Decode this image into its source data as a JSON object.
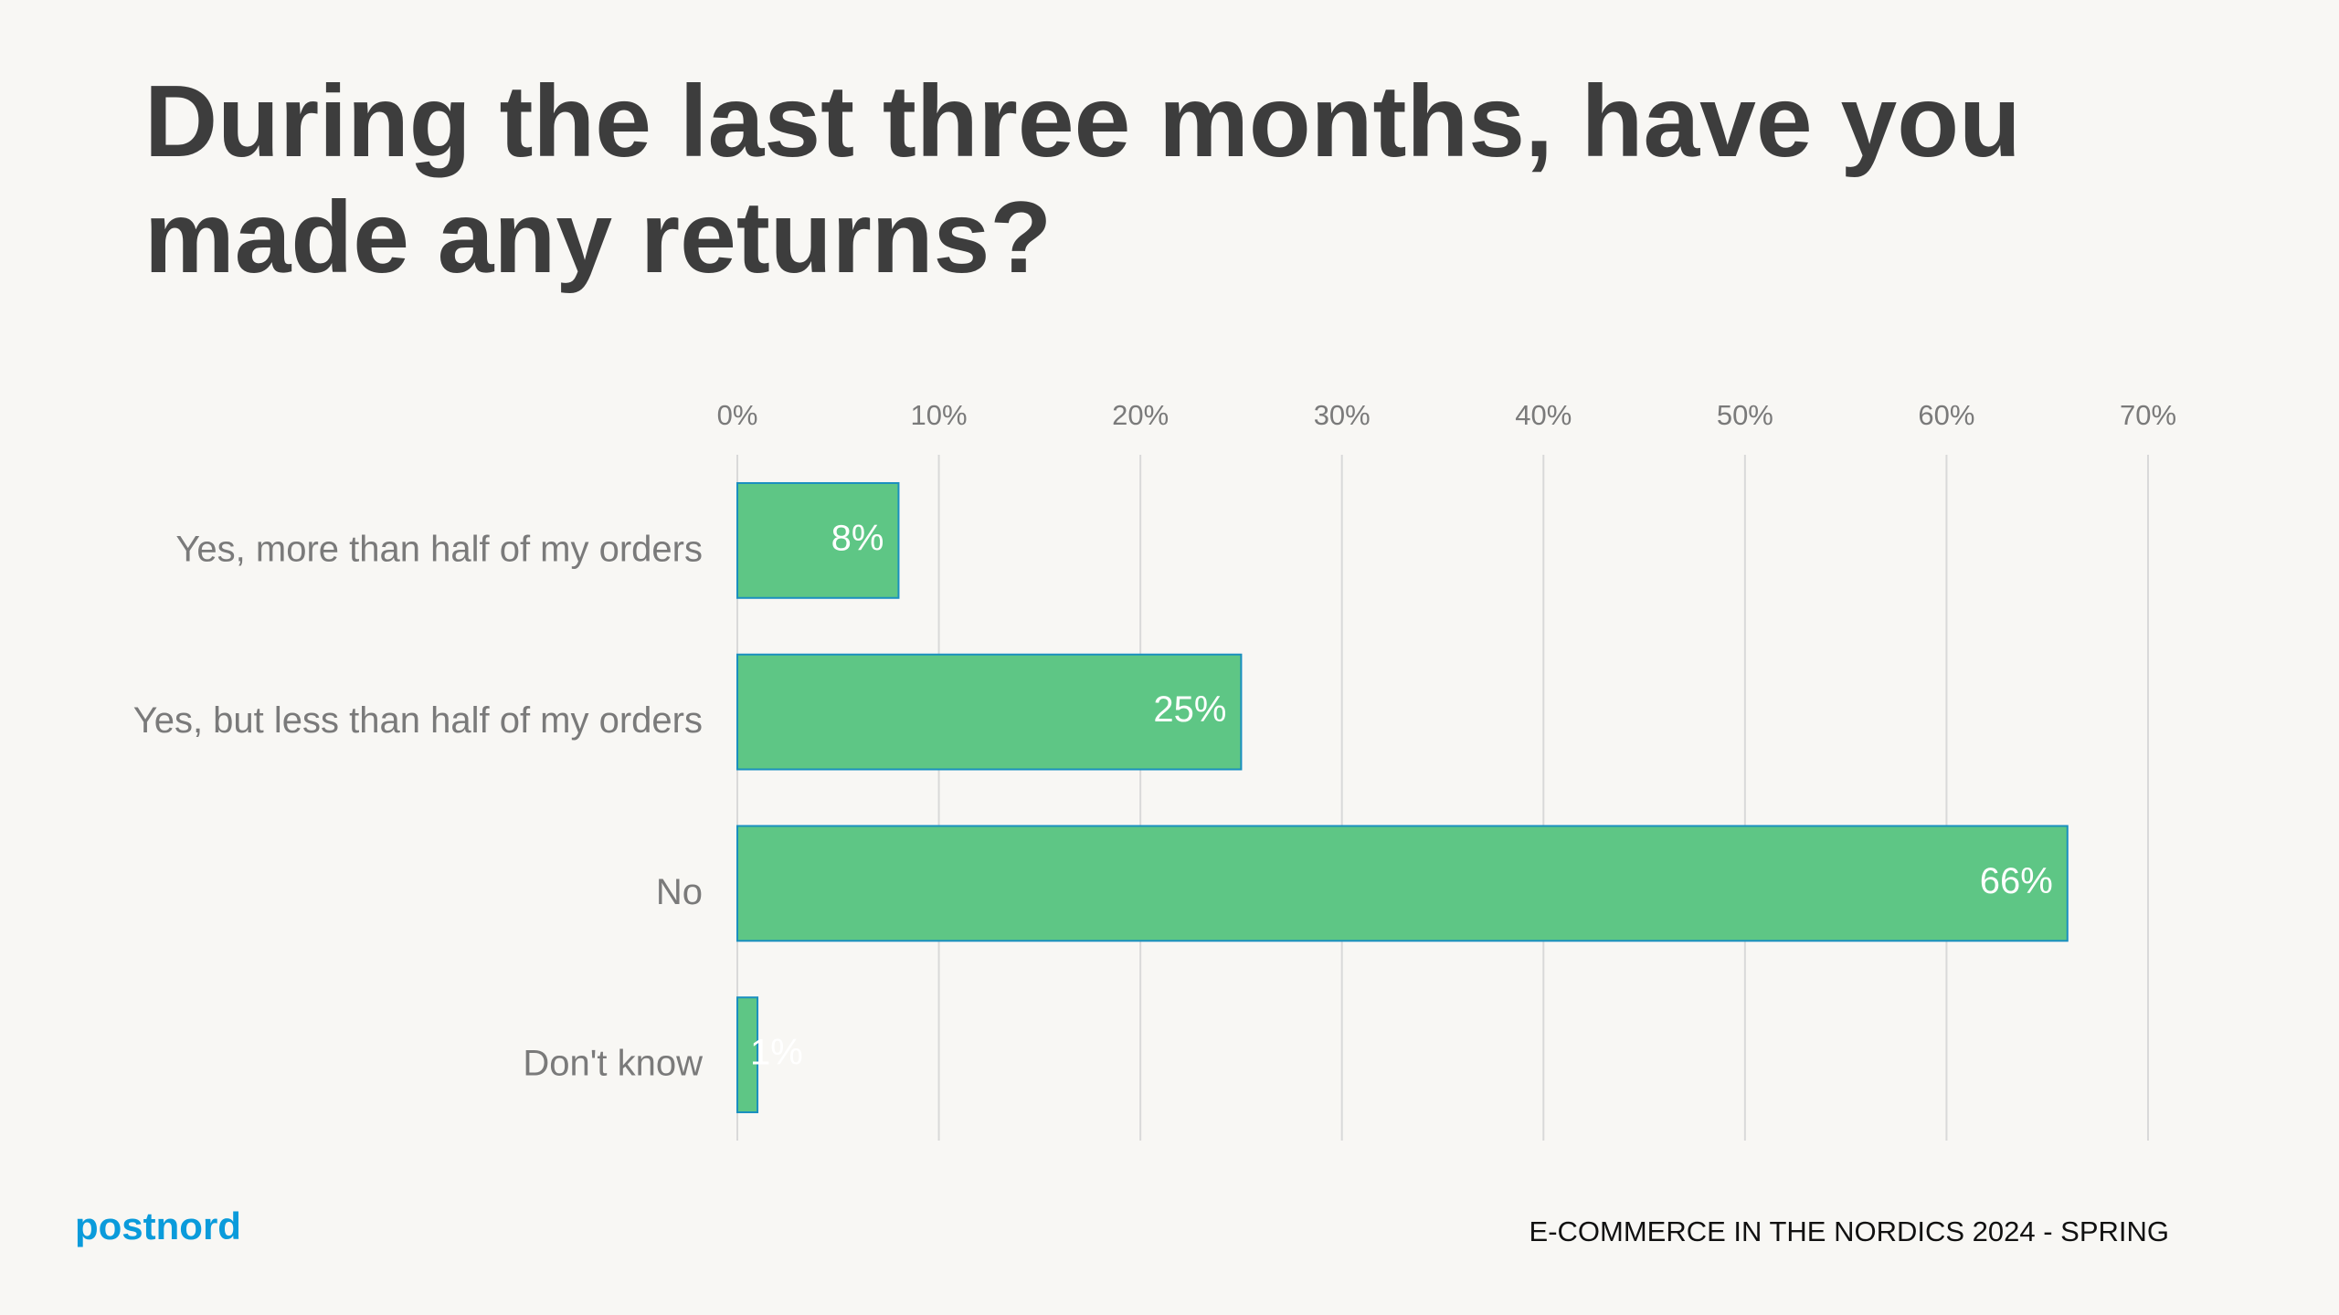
{
  "chart_data": {
    "type": "bar",
    "orientation": "horizontal",
    "title": "During the last three months, have you made any returns?",
    "categories": [
      "Yes, more than half of my orders",
      "Yes, but less than half of my orders",
      "No",
      "Don't know"
    ],
    "values": [
      8,
      25,
      66,
      1
    ],
    "value_labels": [
      "8%",
      "25%",
      "66%",
      "1%"
    ],
    "color": "#5ec685",
    "xlim": [
      0,
      70
    ],
    "xticks": [
      {
        "value": 0,
        "label": "0%"
      },
      {
        "value": 10,
        "label": "10%"
      },
      {
        "value": 20,
        "label": "20%"
      },
      {
        "value": 30,
        "label": "30%"
      },
      {
        "value": 40,
        "label": "40%"
      },
      {
        "value": 50,
        "label": "50%"
      },
      {
        "value": 60,
        "label": "60%"
      },
      {
        "value": 70,
        "label": "70%"
      }
    ],
    "grid": true
  },
  "footer": {
    "logo": "postnord",
    "text": "E-COMMERCE IN THE NORDICS 2024 - SPRING"
  }
}
